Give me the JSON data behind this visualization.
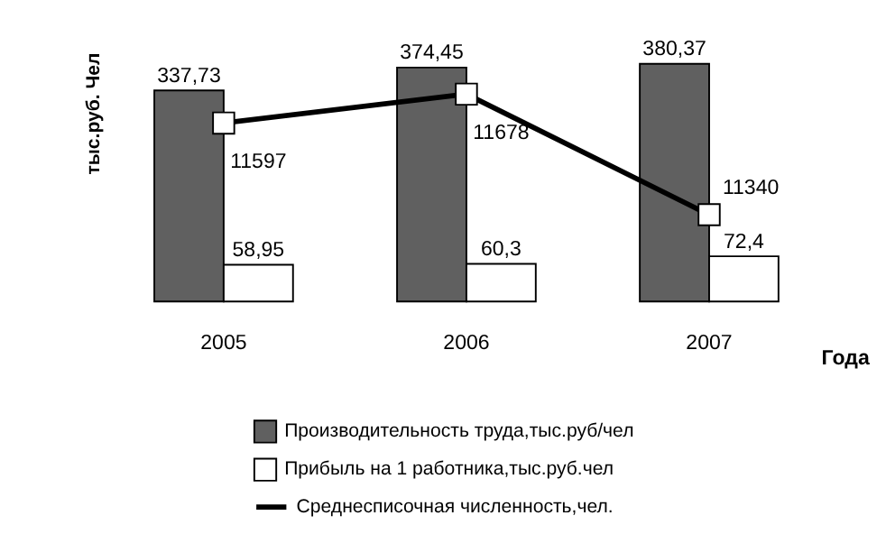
{
  "chart_data": {
    "type": "bar",
    "ylabel": "тыс.руб. Чел",
    "xlabel": "Года",
    "categories": [
      "2005",
      "2006",
      "2007"
    ],
    "series": [
      {
        "name": "Производительность труда,тыс.руб/чел",
        "color": "#606060",
        "values": [
          337.73,
          374.45,
          380.37
        ],
        "value_labels": [
          "337,73",
          "374,45",
          "380,37"
        ]
      },
      {
        "name": "Прибыль на 1 работника,тыс.руб.чел",
        "color": "#ffffff",
        "values": [
          58.95,
          60.3,
          72.4
        ],
        "value_labels": [
          "58,95",
          "60,3",
          "72,4"
        ]
      },
      {
        "name": "Среднесписочная численность,чел.",
        "type": "line",
        "axis": "y2",
        "color": "#000000",
        "marker": "square",
        "values": [
          11597,
          11678,
          11340
        ],
        "value_labels": [
          "11597",
          "11678",
          "11340"
        ]
      }
    ],
    "legend": "bottom"
  }
}
